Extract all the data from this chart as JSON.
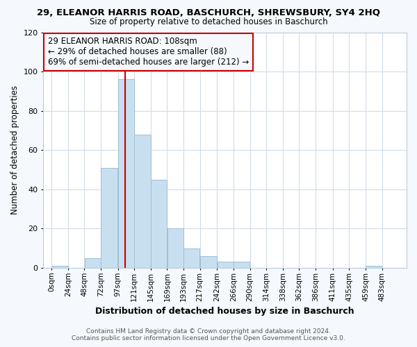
{
  "title": "29, ELEANOR HARRIS ROAD, BASCHURCH, SHREWSBURY, SY4 2HQ",
  "subtitle": "Size of property relative to detached houses in Baschurch",
  "xlabel": "Distribution of detached houses by size in Baschurch",
  "ylabel": "Number of detached properties",
  "bin_edges": [
    0,
    24,
    48,
    72,
    97,
    121,
    145,
    169,
    193,
    217,
    242,
    266,
    290,
    314,
    338,
    362,
    386,
    411,
    435,
    459,
    483,
    507
  ],
  "bin_labels": [
    "0sqm",
    "24sqm",
    "48sqm",
    "72sqm",
    "97sqm",
    "121sqm",
    "145sqm",
    "169sqm",
    "193sqm",
    "217sqm",
    "242sqm",
    "266sqm",
    "290sqm",
    "314sqm",
    "338sqm",
    "362sqm",
    "386sqm",
    "411sqm",
    "435sqm",
    "459sqm",
    "483sqm"
  ],
  "counts": [
    1,
    0,
    5,
    51,
    96,
    68,
    45,
    20,
    10,
    6,
    3,
    3,
    0,
    0,
    0,
    0,
    0,
    0,
    0,
    1,
    0
  ],
  "bar_color": "#c8dff0",
  "bar_edge_color": "#a0bfd8",
  "vline_x": 108,
  "vline_color": "#cc0000",
  "ylim": [
    0,
    120
  ],
  "yticks": [
    0,
    20,
    40,
    60,
    80,
    100,
    120
  ],
  "annotation_text": "29 ELEANOR HARRIS ROAD: 108sqm\n← 29% of detached houses are smaller (88)\n69% of semi-detached houses are larger (212) →",
  "annotation_box_edge": "#cc0000",
  "footer_line1": "Contains HM Land Registry data © Crown copyright and database right 2024.",
  "footer_line2": "Contains public sector information licensed under the Open Government Licence v3.0.",
  "plot_bg_color": "#ffffff",
  "fig_bg_color": "#f5f8fc",
  "grid_color": "#d0dcea",
  "title_fontsize": 9.5,
  "subtitle_fontsize": 8.5,
  "ylabel_fontsize": 8.5,
  "xlabel_fontsize": 9,
  "annotation_fontsize": 8.5,
  "tick_fontsize": 7.5,
  "footer_fontsize": 6.5
}
